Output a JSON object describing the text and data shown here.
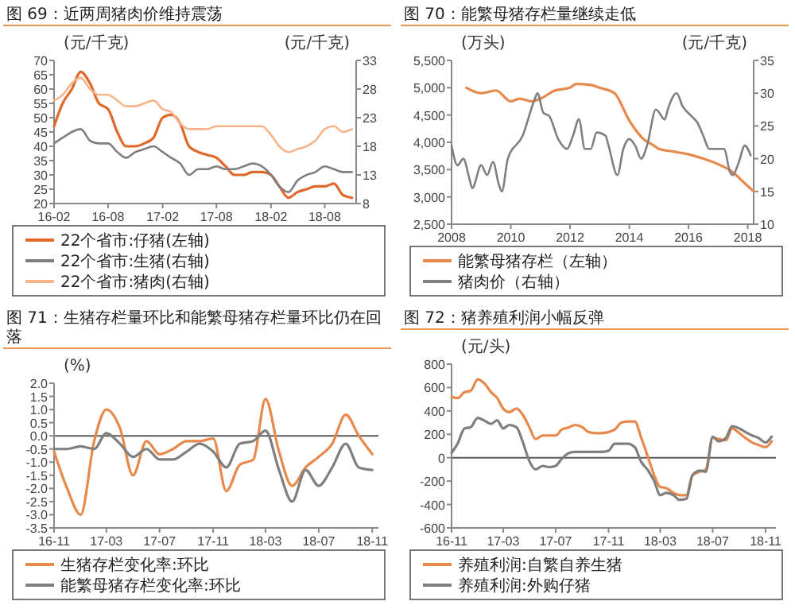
{
  "chart_data": [
    {
      "type": "line",
      "title": "图 69：近两周猪肉价维持震荡",
      "ylabel": "(元/千克)",
      "y2label": "(元/千克)",
      "legend": "bottom",
      "x": [
        "2016-02",
        "2016-03",
        "2016-04",
        "2016-05",
        "2016-06",
        "2016-07",
        "2016-08",
        "2016-09",
        "2016-10",
        "2016-11",
        "2016-12",
        "2017-01",
        "2017-02",
        "2017-03",
        "2017-04",
        "2017-05",
        "2017-06",
        "2017-07",
        "2017-08",
        "2017-09",
        "2017-10",
        "2017-11",
        "2017-12",
        "2018-01",
        "2018-02",
        "2018-03",
        "2018-04",
        "2018-05",
        "2018-06",
        "2018-07",
        "2018-08",
        "2018-09",
        "2018-10",
        "2018-11"
      ],
      "series": [
        {
          "name": "22个省市:仔猪(左轴)",
          "color": "#e0692a",
          "values": [
            47,
            55,
            60,
            66,
            62,
            55,
            53,
            45,
            40,
            40,
            41,
            43,
            50,
            51,
            48,
            40,
            38,
            37,
            36,
            33,
            30,
            30,
            31,
            31,
            30,
            26,
            22,
            24,
            25,
            26,
            26,
            27,
            23,
            22
          ]
        },
        {
          "name": "22个省市:生猪(右轴)",
          "color": "#7f7f7f",
          "axis": "y2",
          "values": [
            18.5,
            19.5,
            20.5,
            21,
            19,
            18.5,
            18.5,
            17,
            16,
            17,
            17.5,
            18,
            17,
            16,
            15,
            13,
            14,
            14,
            14.5,
            14,
            14,
            14.5,
            15,
            14.5,
            13,
            11,
            10,
            12,
            13,
            13.5,
            14.5,
            14,
            13.5,
            13.5
          ]
        },
        {
          "name": "22个省市:猪肉(右轴)",
          "color": "#f7b48a",
          "axis": "y2",
          "values": [
            26,
            27,
            29,
            30,
            28,
            27,
            27,
            26,
            25,
            25,
            25.5,
            26,
            24.5,
            24,
            22,
            21,
            21,
            21,
            21.5,
            21.5,
            21.5,
            21.5,
            21.5,
            21.5,
            20,
            18,
            17,
            17.5,
            18,
            19,
            21,
            21.5,
            20.5,
            21
          ]
        }
      ],
      "xlim": [
        "2016-02-01",
        "2018-11-15"
      ],
      "xticks": [
        {
          "value": "2016-02",
          "label": "16-02"
        },
        {
          "value": "2016-08",
          "label": "16-08"
        },
        {
          "value": "2017-02",
          "label": "17-02"
        },
        {
          "value": "2017-08",
          "label": "17-08"
        },
        {
          "value": "2018-02",
          "label": "18-02"
        },
        {
          "value": "2018-08",
          "label": "18-08"
        }
      ],
      "ylim": [
        20,
        70
      ],
      "yticks": [
        20,
        25,
        30,
        35,
        40,
        45,
        50,
        55,
        60,
        65,
        70
      ],
      "y2lim": [
        8,
        33
      ],
      "y2ticks": [
        8,
        13,
        18,
        23,
        28,
        33
      ]
    },
    {
      "type": "line",
      "title": "图 70：能繁母猪存栏量继续走低",
      "ylabel": "(万头)",
      "y2label": "(元/千克)",
      "legend": "bottom",
      "series": [
        {
          "name": "能繁母猪存栏（左轴）",
          "color": "#e8884a",
          "x": [
            2008.5,
            2009,
            2009.5,
            2010,
            2010.3,
            2010.7,
            2011,
            2011.5,
            2012,
            2012.2,
            2012.7,
            2013,
            2013.5,
            2014,
            2014.5,
            2014.8,
            2015,
            2015.5,
            2016,
            2016.5,
            2017,
            2017.5,
            2017.8,
            2018.2
          ],
          "values": [
            5000,
            4900,
            4950,
            4750,
            4800,
            4750,
            4800,
            4950,
            5000,
            5070,
            5050,
            5000,
            4900,
            4400,
            4050,
            3950,
            3880,
            3830,
            3780,
            3700,
            3600,
            3450,
            3300,
            3100
          ]
        },
        {
          "name": "猪肉价（右轴）",
          "color": "#7f7f7f",
          "axis": "y2",
          "x": [
            2008.0,
            2008.2,
            2008.4,
            2008.6,
            2008.7,
            2009.0,
            2009.2,
            2009.4,
            2009.6,
            2009.7,
            2009.9,
            2010.4,
            2010.8,
            2010.9,
            2011.1,
            2011.3,
            2011.6,
            2011.9,
            2012.1,
            2012.3,
            2012.5,
            2012.7,
            2012.9,
            2013.2,
            2013.3,
            2013.6,
            2013.8,
            2014.0,
            2014.2,
            2014.4,
            2014.6,
            2014.9,
            2015.2,
            2015.3,
            2015.6,
            2015.8,
            2016.1,
            2016.3,
            2016.5,
            2016.7,
            2017.0,
            2017.2,
            2017.4,
            2017.5,
            2017.7,
            2017.9,
            2018.1
          ],
          "values": [
            22,
            19,
            20,
            17,
            15.5,
            19,
            17.5,
            19.5,
            16,
            15,
            20,
            23.5,
            29,
            30,
            27,
            26.5,
            23,
            21.5,
            23.5,
            26,
            21.5,
            21.5,
            24,
            23.5,
            22,
            17.5,
            21.5,
            23,
            22,
            20,
            22,
            27.5,
            26,
            27.5,
            30,
            28,
            26.5,
            25.5,
            23.5,
            21.5,
            21.5,
            21.5,
            18,
            17.5,
            19.5,
            22,
            20.5
          ]
        }
      ],
      "xlim": [
        2008,
        2018.2
      ],
      "xticks": [
        2008,
        2010,
        2012,
        2014,
        2016,
        2018
      ],
      "ylim": [
        2500,
        5500
      ],
      "yticks": [
        {
          "value": 2500,
          "label": "2,500"
        },
        {
          "value": 3000,
          "label": "3,000"
        },
        {
          "value": 3500,
          "label": "3,500"
        },
        {
          "value": 4000,
          "label": "4,000"
        },
        {
          "value": 4500,
          "label": "4,500"
        },
        {
          "value": 5000,
          "label": "5,000"
        },
        {
          "value": 5500,
          "label": "5,500"
        }
      ],
      "y2lim": [
        10,
        35
      ],
      "y2ticks": [
        10,
        15,
        20,
        25,
        30,
        35
      ]
    },
    {
      "type": "line",
      "title": "图 71：生猪存栏量环比和能繁母猪存栏量环比仍在回落",
      "ylabel": "(%)",
      "legend": "bottom",
      "x": [
        "2016-11",
        "2016-12",
        "2017-01",
        "2017-02",
        "2017-03",
        "2017-04",
        "2017-05",
        "2017-06",
        "2017-07",
        "2017-08",
        "2017-09",
        "2017-10",
        "2017-11",
        "2017-12",
        "2018-01",
        "2018-02",
        "2018-03",
        "2018-04",
        "2018-05",
        "2018-06",
        "2018-07",
        "2018-08",
        "2018-09",
        "2018-10",
        "2018-11"
      ],
      "series": [
        {
          "name": "生猪存栏变化率:环比",
          "color": "#e8884a",
          "values": [
            -0.6,
            -2.0,
            -3.0,
            -0.2,
            1.0,
            0.3,
            -1.5,
            -0.2,
            -0.7,
            -0.5,
            -0.2,
            -0.2,
            -0.1,
            -2.1,
            -1.1,
            -0.9,
            1.4,
            -0.6,
            -1.9,
            -1.2,
            -0.8,
            -0.3,
            0.8,
            0.0,
            -0.7
          ]
        },
        {
          "name": "能繁母猪存栏变化率:环比",
          "color": "#7f7f7f",
          "values": [
            -0.5,
            -0.5,
            -0.4,
            -0.5,
            0.1,
            -0.3,
            -0.8,
            -0.5,
            -0.9,
            -0.9,
            -0.6,
            -0.3,
            -0.6,
            -1.2,
            -0.3,
            -0.2,
            0.2,
            -1.3,
            -2.5,
            -1.3,
            -1.9,
            -1.2,
            -0.3,
            -1.2,
            -1.3
          ]
        }
      ],
      "xlim": [
        "2016-11-01",
        "2018-11-15"
      ],
      "xticks": [
        {
          "value": "2016-11",
          "label": "16-11"
        },
        {
          "value": "2017-03",
          "label": "17-03"
        },
        {
          "value": "2017-07",
          "label": "17-07"
        },
        {
          "value": "2017-11",
          "label": "17-11"
        },
        {
          "value": "2018-03",
          "label": "18-03"
        },
        {
          "value": "2018-07",
          "label": "18-07"
        },
        {
          "value": "2018-11",
          "label": "18-11"
        }
      ],
      "ylim": [
        -3.5,
        2.0
      ],
      "yticks": [
        {
          "value": -3.5,
          "label": "-3.5"
        },
        {
          "value": -3,
          "label": "-3.0"
        },
        {
          "value": -2.5,
          "label": "-2.5"
        },
        {
          "value": -2,
          "label": "-2.0"
        },
        {
          "value": -1.5,
          "label": "-1.5"
        },
        {
          "value": -1,
          "label": "-1.0"
        },
        {
          "value": -0.5,
          "label": "-0.5"
        },
        {
          "value": 0,
          "label": "0.0"
        },
        {
          "value": 0.5,
          "label": "0.5"
        },
        {
          "value": 1,
          "label": "1.0"
        },
        {
          "value": 1.5,
          "label": "1.5"
        },
        {
          "value": 2,
          "label": "2.0"
        }
      ],
      "ref_lines": [
        {
          "axis": "y",
          "value": 0,
          "color": "#595959"
        }
      ]
    },
    {
      "type": "line",
      "title": "图 72：猪养殖利润小幅反弹",
      "ylabel": "(元/头)",
      "legend": "bottom",
      "x": [
        "2016-11-01",
        "2016-11-15",
        "2016-12-01",
        "2016-12-15",
        "2017-01-01",
        "2017-01-15",
        "2017-02-01",
        "2017-02-15",
        "2017-03-01",
        "2017-03-15",
        "2017-04-01",
        "2017-04-15",
        "2017-05-01",
        "2017-05-15",
        "2017-06-01",
        "2017-06-15",
        "2017-07-01",
        "2017-07-15",
        "2017-08-01",
        "2017-08-15",
        "2017-09-01",
        "2017-09-15",
        "2017-10-01",
        "2017-10-15",
        "2017-11-01",
        "2017-11-15",
        "2017-12-01",
        "2017-12-15",
        "2018-01-01",
        "2018-01-15",
        "2018-02-01",
        "2018-02-15",
        "2018-03-01",
        "2018-03-15",
        "2018-04-01",
        "2018-04-15",
        "2018-05-01",
        "2018-05-15",
        "2018-06-01",
        "2018-06-15",
        "2018-07-01",
        "2018-07-15",
        "2018-08-01",
        "2018-08-15",
        "2018-09-01",
        "2018-09-15",
        "2018-10-01",
        "2018-10-15",
        "2018-11-01",
        "2018-11-15"
      ],
      "series": [
        {
          "name": "养殖利润:自繁自养生猪",
          "color": "#e8884a",
          "values": [
            520,
            510,
            560,
            570,
            670,
            640,
            560,
            510,
            420,
            390,
            420,
            370,
            260,
            160,
            190,
            190,
            190,
            240,
            260,
            280,
            260,
            220,
            210,
            210,
            220,
            240,
            300,
            310,
            310,
            180,
            0,
            -150,
            -250,
            -260,
            -300,
            -320,
            -320,
            -150,
            -120,
            -100,
            170,
            160,
            150,
            250,
            210,
            170,
            130,
            110,
            90,
            140
          ]
        },
        {
          "name": "养殖利润:外购仔猪",
          "color": "#7f7f7f",
          "values": [
            40,
            120,
            250,
            260,
            340,
            320,
            290,
            320,
            250,
            280,
            260,
            140,
            -30,
            -100,
            -70,
            -80,
            -70,
            -10,
            40,
            50,
            50,
            50,
            50,
            50,
            60,
            120,
            120,
            120,
            90,
            -30,
            -110,
            -200,
            -320,
            -300,
            -320,
            -360,
            -350,
            -150,
            -110,
            -120,
            180,
            140,
            170,
            270,
            250,
            220,
            190,
            170,
            130,
            180
          ]
        }
      ],
      "xlim": [
        "2016-11-01",
        "2018-11-25"
      ],
      "xticks": [
        {
          "value": "2016-11",
          "label": "16-11"
        },
        {
          "value": "2017-03",
          "label": "17-03"
        },
        {
          "value": "2017-07",
          "label": "17-07"
        },
        {
          "value": "2017-11",
          "label": "17-11"
        },
        {
          "value": "2018-03",
          "label": "18-03"
        },
        {
          "value": "2018-07",
          "label": "18-07"
        },
        {
          "value": "2018-11",
          "label": "18-11"
        }
      ],
      "ylim": [
        -600,
        800
      ],
      "yticks": [
        -600,
        -400,
        -200,
        0,
        200,
        400,
        600,
        800
      ],
      "ref_lines": [
        {
          "axis": "y",
          "value": 0,
          "color": "#595959"
        }
      ]
    }
  ]
}
